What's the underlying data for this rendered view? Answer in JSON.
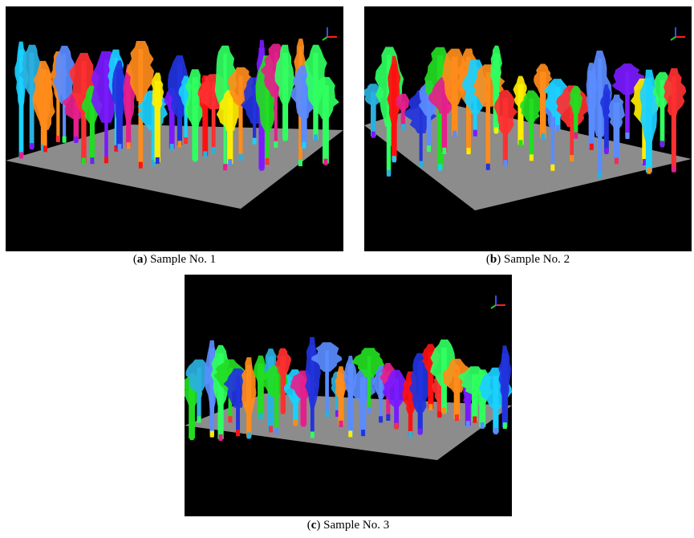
{
  "figure": {
    "panels": [
      {
        "caption": [
          "(",
          "a",
          ") Sample No. 1"
        ]
      },
      {
        "caption": [
          "(",
          "b",
          ") Sample No. 2"
        ]
      },
      {
        "caption": [
          "(",
          "c",
          ") Sample No. 3"
        ]
      }
    ]
  }
}
